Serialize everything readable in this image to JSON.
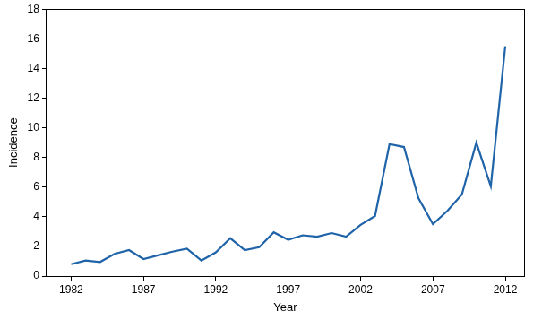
{
  "chart_data": {
    "type": "line",
    "x_label": "Year",
    "y_label": "Incidence",
    "x": [
      1982,
      1983,
      1984,
      1985,
      1986,
      1987,
      1988,
      1989,
      1990,
      1991,
      1992,
      1993,
      1994,
      1995,
      1996,
      1997,
      1998,
      1999,
      2000,
      2001,
      2002,
      2003,
      2004,
      2005,
      2006,
      2007,
      2008,
      2009,
      2010,
      2011,
      2012
    ],
    "values": [
      0.8,
      1.05,
      0.95,
      1.5,
      1.75,
      1.15,
      1.4,
      1.65,
      1.85,
      1.05,
      1.6,
      2.55,
      1.75,
      1.95,
      2.95,
      2.45,
      2.75,
      2.65,
      2.9,
      2.65,
      3.45,
      4.05,
      8.9,
      8.7,
      5.25,
      3.5,
      4.4,
      5.5,
      9.0,
      6.05,
      15.5
    ],
    "color": "#1f63a8",
    "xlim": [
      1980.3,
      2013.3
    ],
    "xticks": [
      1982,
      1987,
      1992,
      1997,
      2002,
      2007,
      2012
    ],
    "ylim": [
      0,
      18
    ],
    "yticks": [
      0,
      2,
      4,
      6,
      8,
      10,
      12,
      14,
      16,
      18
    ],
    "grid": false
  }
}
